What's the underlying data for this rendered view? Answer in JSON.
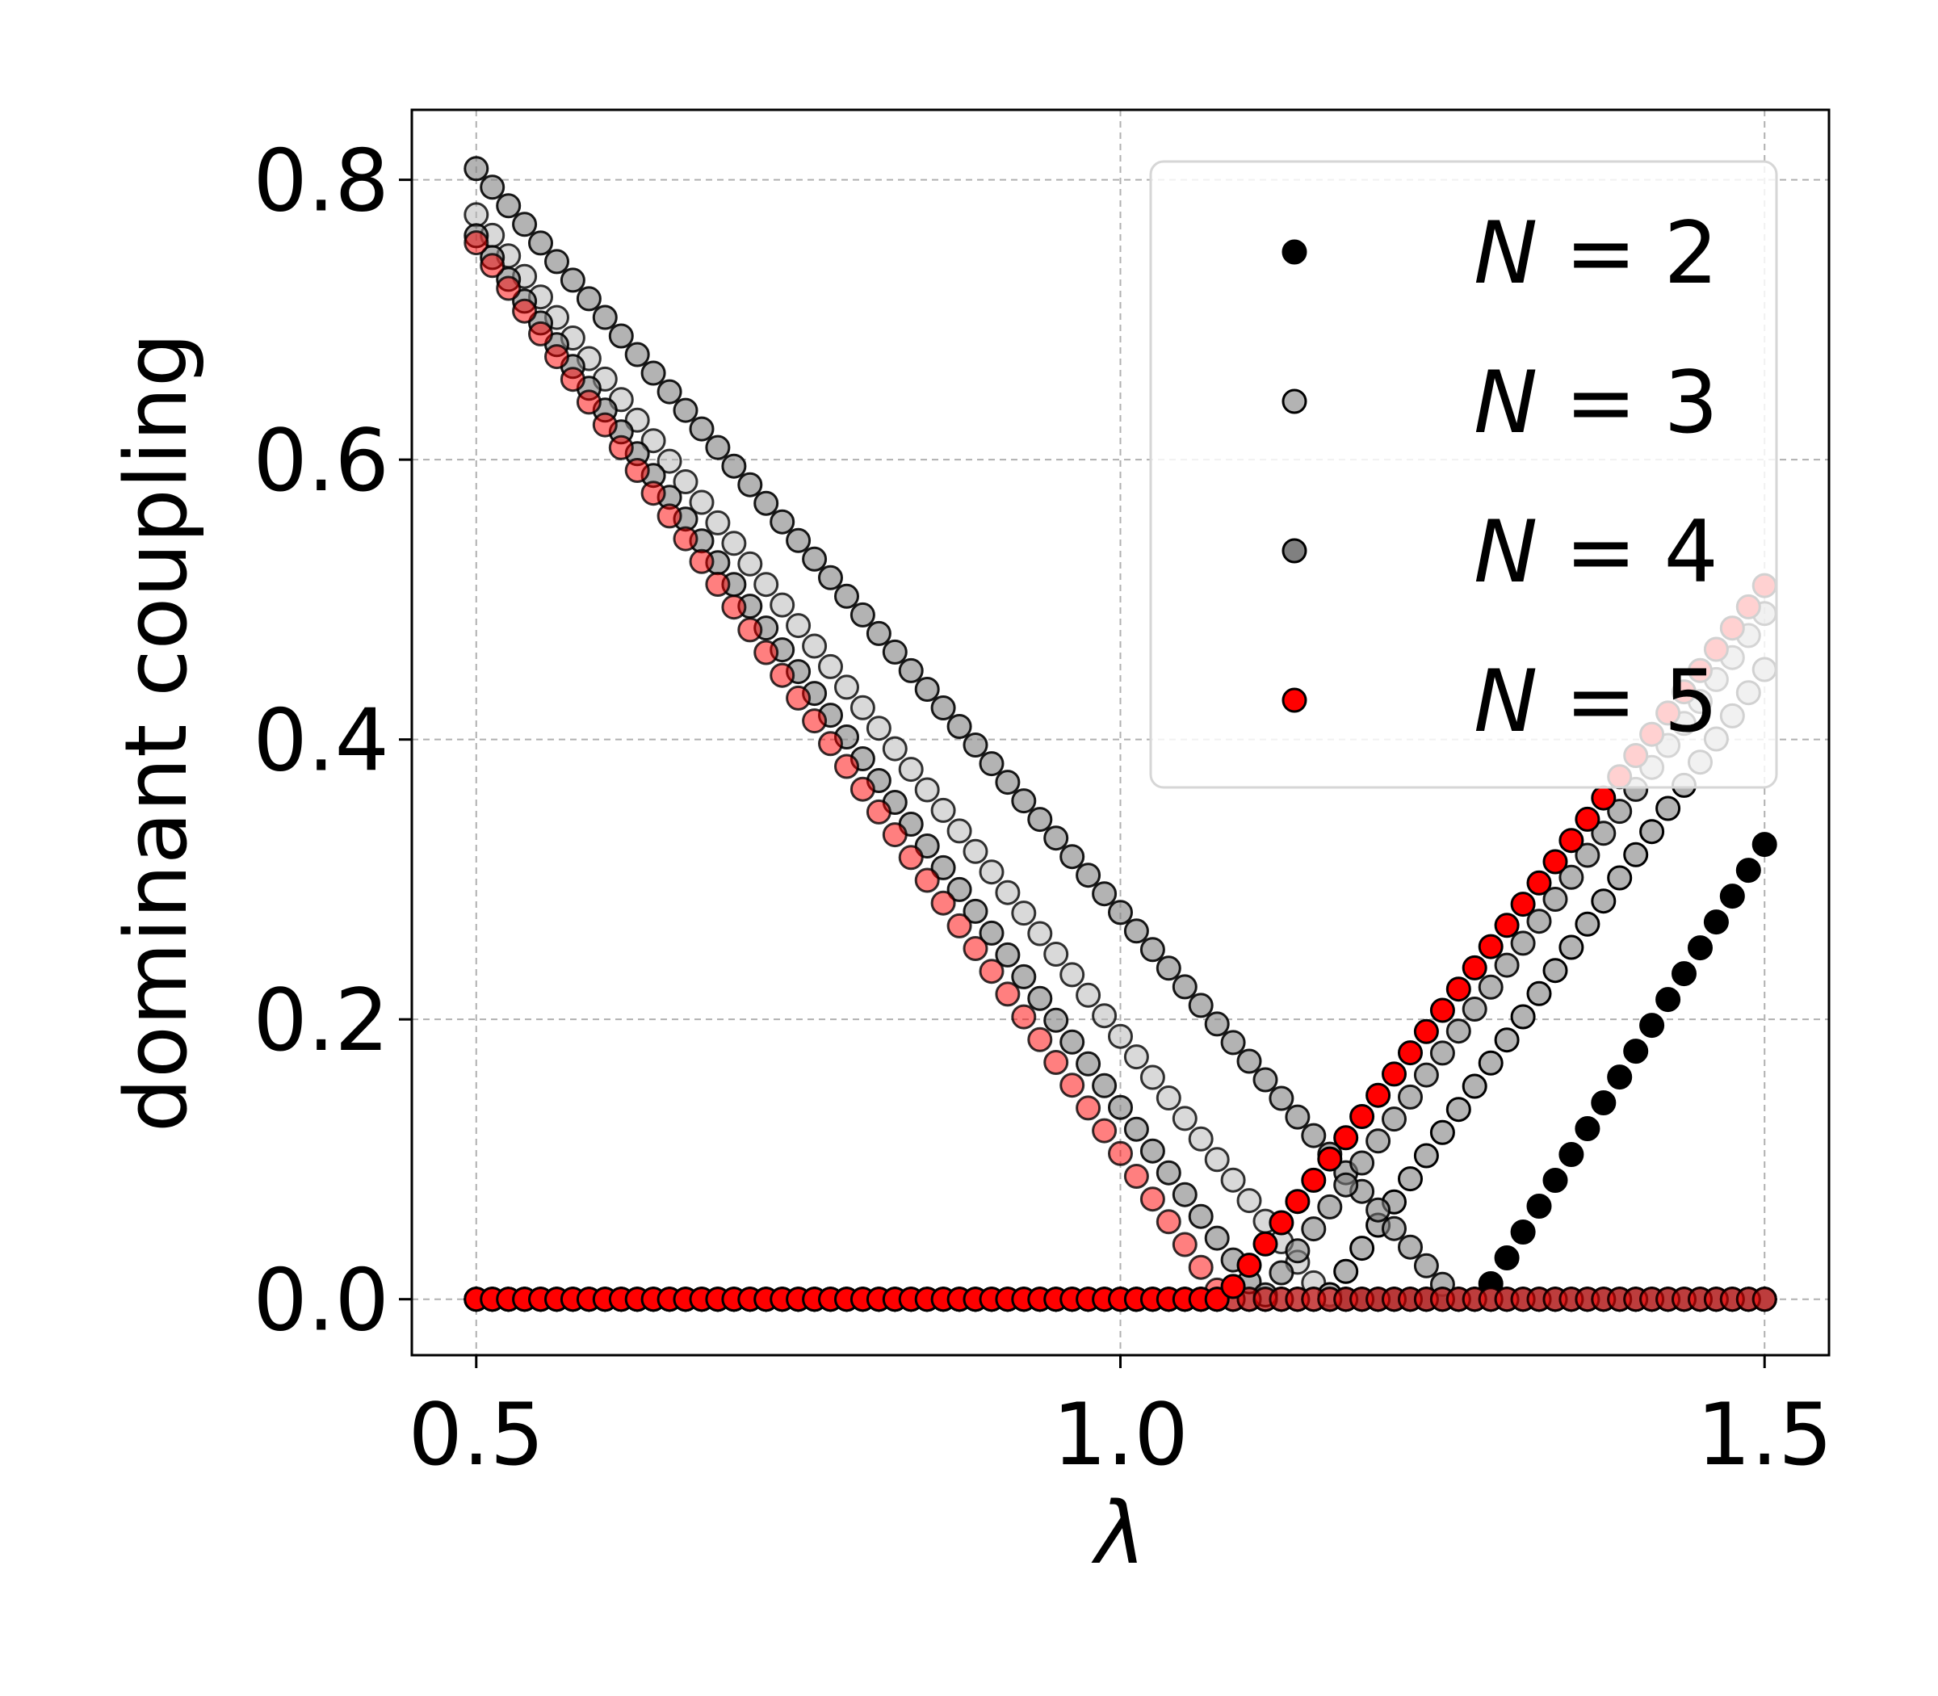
{
  "chart_data": {
    "type": "scatter",
    "xlabel": "λ",
    "ylabel": "dominant coupling",
    "xlim": [
      0.45,
      1.55
    ],
    "ylim": [
      -0.04,
      0.85
    ],
    "xticks": [
      0.5,
      1.0,
      1.5
    ],
    "xtick_labels": [
      "0.5",
      "1.0",
      "1.5"
    ],
    "yticks": [
      0.0,
      0.2,
      0.4,
      0.6,
      0.8
    ],
    "ytick_labels": [
      "0.0",
      "0.2",
      "0.4",
      "0.6",
      "0.8"
    ],
    "grid": true,
    "legend_position": "top-right",
    "x": {
      "start": 0.5,
      "end": 1.5,
      "count": 81
    },
    "series": [
      {
        "name": "N = 2",
        "legend_symbol": "N",
        "legend_value": "2",
        "color": "#000000",
        "legend_alpha": 1.0,
        "branches": [
          {
            "label": "lower",
            "critical": 1.28,
            "y_at_start": 0.0,
            "y_at_end": 0.0,
            "alpha": 1.0
          },
          {
            "label": "upper",
            "critical": 1.28,
            "y_at_start": 0.0,
            "y_at_end": 0.325,
            "alpha": 1.0
          }
        ]
      },
      {
        "name": "N = 3",
        "legend_symbol": "N",
        "legend_value": "3",
        "color": "#b3b3b3",
        "legend_alpha": 1.0,
        "branches": [
          {
            "label": "lower",
            "critical": 1.16,
            "y_at_start": 0.775,
            "y_at_end": 0.0,
            "alpha": 0.5
          },
          {
            "label": "upper",
            "critical": 1.16,
            "y_at_start": 0.0,
            "y_at_end": 0.45,
            "alpha": 1.0
          }
        ]
      },
      {
        "name": "N = 4",
        "legend_symbol": "N",
        "legend_value": "4",
        "color": "#808080",
        "legend_alpha": 1.0,
        "branches": [
          {
            "label": "lower",
            "critical": 1.26,
            "y_at_start": 0.808,
            "y_at_end": 0.0,
            "alpha": 0.6
          },
          {
            "label": "upper",
            "critical": 1.26,
            "y_at_start": 0.0,
            "y_at_end": 0.0,
            "alpha": 0.6
          },
          {
            "label": "secondary",
            "critical": 1.11,
            "y_at_start": 0.76,
            "y_at_end": 0.49,
            "alpha": 0.6
          }
        ]
      },
      {
        "name": "N = 5",
        "legend_symbol": "N",
        "legend_value": "5",
        "color": "#ff0000",
        "legend_alpha": 1.0,
        "branches": [
          {
            "label": "lower",
            "critical": 1.08,
            "y_at_start": 0.755,
            "y_at_end": 0.0,
            "alpha": 0.5
          },
          {
            "label": "upper",
            "critical": 1.08,
            "y_at_start": 0.0,
            "y_at_end": 0.51,
            "alpha": 1.0
          }
        ]
      }
    ]
  }
}
